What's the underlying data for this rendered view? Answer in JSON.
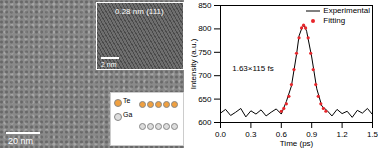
{
  "chart_data": {
    "type": "line",
    "xlabel": "Time (ps)",
    "ylabel": "Intensity (a.u.)",
    "xlim": [
      0,
      1.5
    ],
    "xticks": [
      {
        "value": 0,
        "label": "0.0"
      },
      0.3,
      0.6,
      0.9,
      1.2,
      1.5
    ],
    "ylim": [
      600,
      850
    ],
    "yticks": [
      600,
      650,
      700,
      750,
      800,
      850
    ],
    "legend": "upper right",
    "annotations": [
      {
        "text": "1.63×115 fs",
        "x": 0.32,
        "y": 716
      }
    ],
    "series": [
      {
        "name": "Experimental",
        "type": "line",
        "color": "#000000",
        "line_style": "solid",
        "x": [
          0,
          0.05,
          0.1,
          0.15,
          0.2,
          0.25,
          0.3,
          0.35,
          0.4,
          0.45,
          0.5,
          0.55,
          0.6,
          0.65,
          0.7,
          0.75,
          0.775,
          0.8,
          0.825,
          0.85,
          0.9,
          0.95,
          1.0,
          1.05,
          1.1,
          1.15,
          1.2,
          1.25,
          1.3,
          1.35,
          1.4,
          1.45,
          1.5
        ],
        "values": [
          620,
          628,
          615,
          622,
          630,
          612,
          625,
          618,
          627,
          614,
          622,
          629,
          618,
          645,
          678,
          745,
          785,
          800,
          808,
          795,
          740,
          672,
          635,
          626,
          614,
          628,
          619,
          624,
          611,
          626,
          620,
          630,
          617
        ]
      },
      {
        "name": "Fitting",
        "type": "scatter",
        "color": "#e8262b",
        "marker": "circle",
        "x": [
          0.6,
          0.625,
          0.65,
          0.675,
          0.7,
          0.725,
          0.75,
          0.775,
          0.8,
          0.82,
          0.84,
          0.865,
          0.89,
          0.915,
          0.94,
          0.965,
          0.99,
          1.015,
          1.04
        ],
        "values": [
          624,
          630,
          640,
          656,
          681,
          713,
          748,
          781,
          802,
          808,
          802,
          781,
          748,
          713,
          681,
          656,
          640,
          630,
          624
        ]
      }
    ]
  },
  "image_panel": {
    "scale_bar": "20 nm",
    "inset_hrtem": {
      "lattice_label": "0.28 nm (111)",
      "scale_bar": "2 nm"
    },
    "inset_structure": {
      "atoms": [
        {
          "label": "Te",
          "color": "#f0a040"
        },
        {
          "label": "Ga",
          "color": "#dddddd"
        }
      ]
    }
  }
}
